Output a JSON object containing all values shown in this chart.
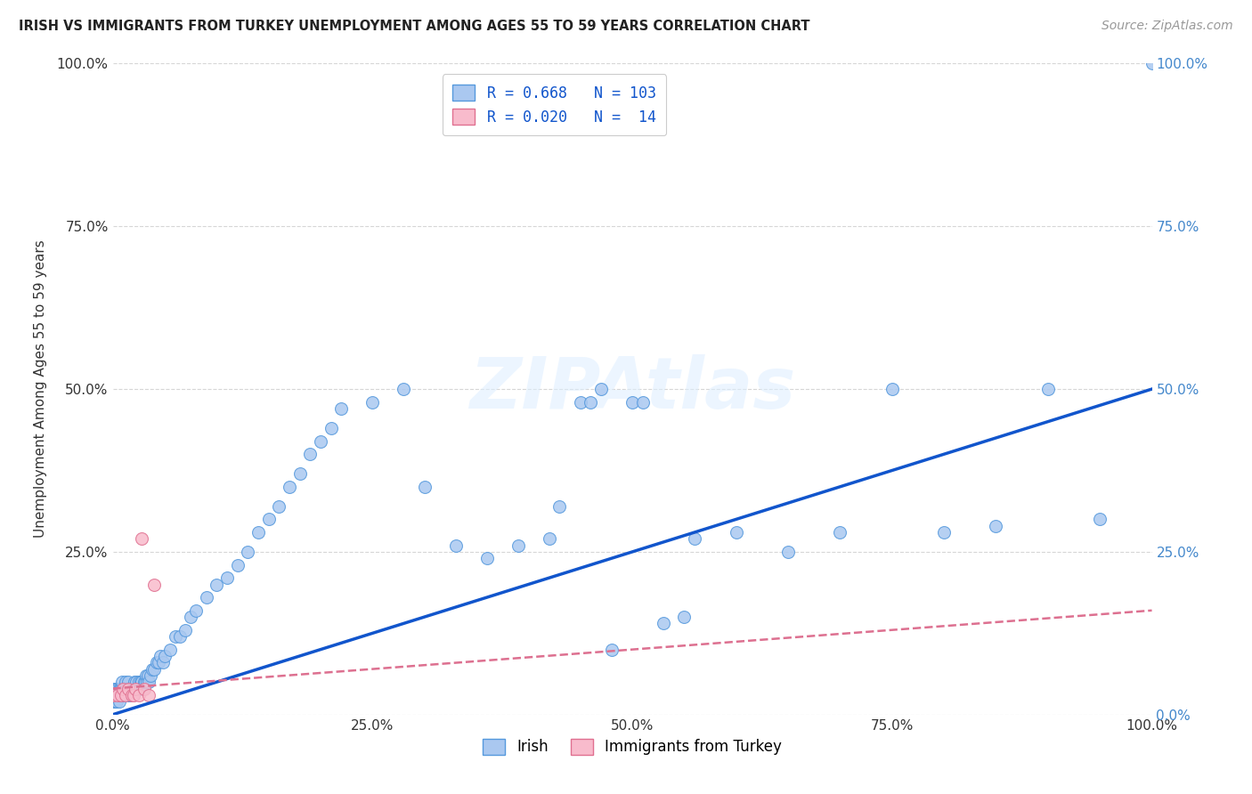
{
  "title": "IRISH VS IMMIGRANTS FROM TURKEY UNEMPLOYMENT AMONG AGES 55 TO 59 YEARS CORRELATION CHART",
  "source": "Source: ZipAtlas.com",
  "ylabel": "Unemployment Among Ages 55 to 59 years",
  "xlim": [
    0,
    1.0
  ],
  "ylim": [
    0,
    1.0
  ],
  "irish_R": 0.668,
  "irish_N": 103,
  "turkey_R": 0.02,
  "turkey_N": 14,
  "irish_color": "#aac8f0",
  "irish_edge_color": "#5599dd",
  "turkey_color": "#f8bbcc",
  "turkey_edge_color": "#e07090",
  "irish_line_color": "#1155cc",
  "turkey_line_color": "#dd7090",
  "legend_text_color": "#1155cc",
  "watermark_color": "#ddeeff",
  "irish_x": [
    0.0,
    0.001,
    0.001,
    0.002,
    0.002,
    0.003,
    0.003,
    0.003,
    0.004,
    0.004,
    0.005,
    0.005,
    0.006,
    0.006,
    0.007,
    0.007,
    0.008,
    0.008,
    0.009,
    0.009,
    0.01,
    0.01,
    0.011,
    0.012,
    0.012,
    0.013,
    0.014,
    0.015,
    0.015,
    0.016,
    0.017,
    0.018,
    0.019,
    0.02,
    0.021,
    0.022,
    0.023,
    0.024,
    0.025,
    0.026,
    0.027,
    0.028,
    0.029,
    0.03,
    0.031,
    0.032,
    0.033,
    0.034,
    0.035,
    0.036,
    0.038,
    0.04,
    0.042,
    0.044,
    0.046,
    0.048,
    0.05,
    0.055,
    0.06,
    0.065,
    0.07,
    0.075,
    0.08,
    0.09,
    0.1,
    0.11,
    0.12,
    0.13,
    0.14,
    0.15,
    0.16,
    0.17,
    0.18,
    0.19,
    0.2,
    0.21,
    0.22,
    0.25,
    0.28,
    0.3,
    0.33,
    0.36,
    0.39,
    0.42,
    0.45,
    0.48,
    0.5,
    0.51,
    0.53,
    0.55,
    0.56,
    0.6,
    0.65,
    0.7,
    0.75,
    0.8,
    0.85,
    0.9,
    0.95,
    1.0,
    0.46,
    0.47,
    0.43
  ],
  "irish_y": [
    0.03,
    0.02,
    0.04,
    0.02,
    0.03,
    0.02,
    0.03,
    0.04,
    0.02,
    0.03,
    0.03,
    0.04,
    0.02,
    0.04,
    0.03,
    0.04,
    0.03,
    0.04,
    0.03,
    0.05,
    0.03,
    0.04,
    0.03,
    0.04,
    0.05,
    0.03,
    0.04,
    0.03,
    0.05,
    0.04,
    0.03,
    0.04,
    0.03,
    0.04,
    0.05,
    0.04,
    0.05,
    0.04,
    0.05,
    0.04,
    0.05,
    0.05,
    0.04,
    0.05,
    0.05,
    0.06,
    0.05,
    0.06,
    0.05,
    0.06,
    0.07,
    0.07,
    0.08,
    0.08,
    0.09,
    0.08,
    0.09,
    0.1,
    0.12,
    0.12,
    0.13,
    0.15,
    0.16,
    0.18,
    0.2,
    0.21,
    0.23,
    0.25,
    0.28,
    0.3,
    0.32,
    0.35,
    0.37,
    0.4,
    0.42,
    0.44,
    0.47,
    0.48,
    0.5,
    0.35,
    0.26,
    0.24,
    0.26,
    0.27,
    0.48,
    0.1,
    0.48,
    0.48,
    0.14,
    0.15,
    0.27,
    0.28,
    0.25,
    0.28,
    0.5,
    0.28,
    0.29,
    0.5,
    0.3,
    1.0,
    0.48,
    0.5,
    0.32
  ],
  "turkey_x": [
    0.0,
    0.005,
    0.008,
    0.01,
    0.012,
    0.015,
    0.018,
    0.02,
    0.022,
    0.025,
    0.028,
    0.03,
    0.035,
    0.04
  ],
  "turkey_y": [
    0.03,
    0.03,
    0.03,
    0.04,
    0.03,
    0.04,
    0.03,
    0.03,
    0.04,
    0.03,
    0.27,
    0.04,
    0.03,
    0.2
  ]
}
